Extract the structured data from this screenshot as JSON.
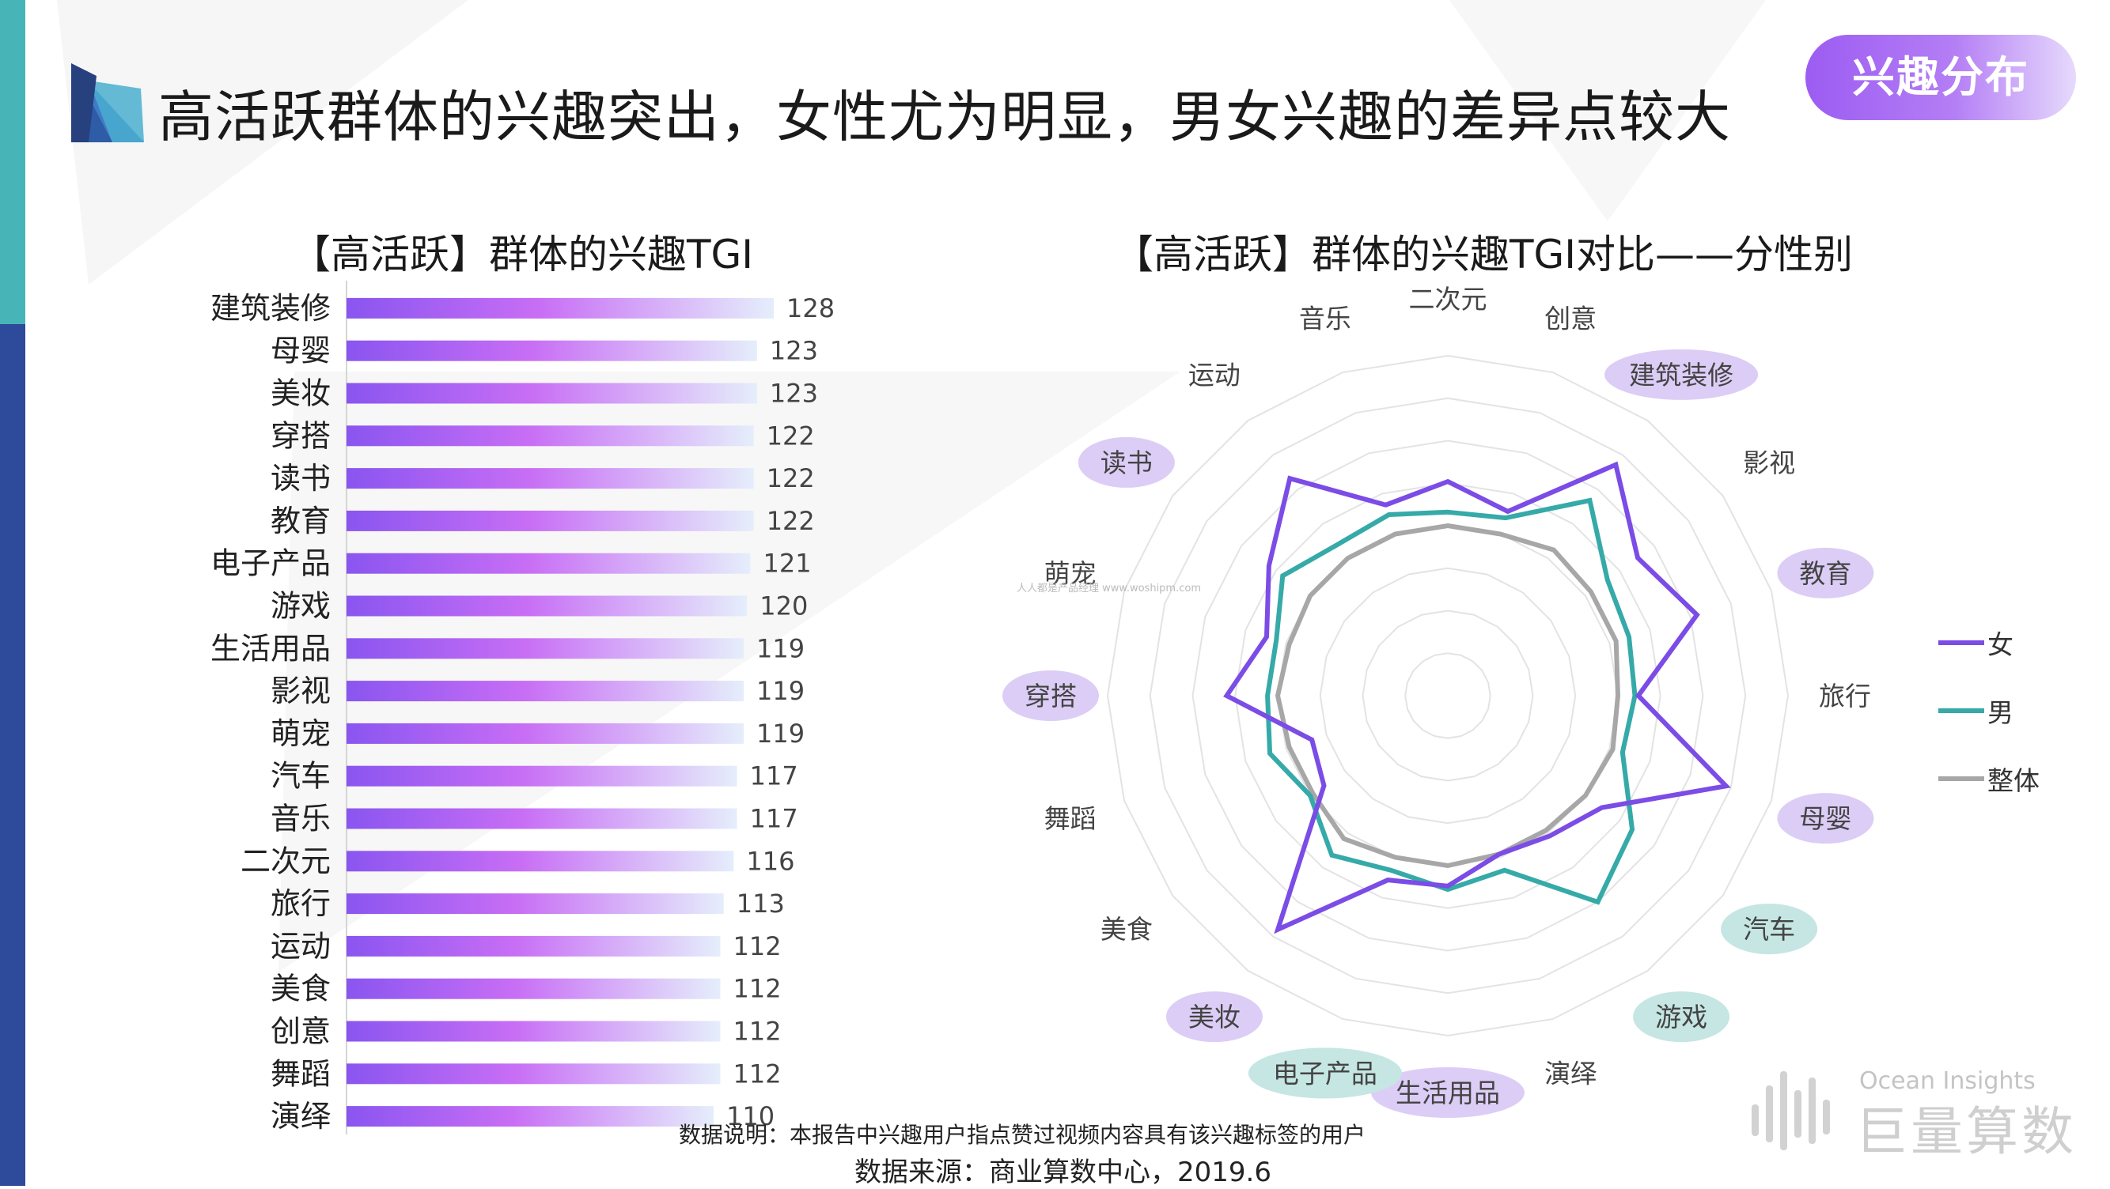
{
  "header": {
    "title": "高活跃群体的兴趣突出，女性尤为明显，男女兴趣的差异点较大",
    "tag": "兴趣分布"
  },
  "colors": {
    "female": "#7b4ce6",
    "male": "#35aaa8",
    "overall": "#a7a7a7",
    "highlight_female": "#dccdf6",
    "highlight_male": "#c5e6e3",
    "bar_start": "#8a55f0",
    "bar_mid": "#c86ef5",
    "bar_end": "#e5eefb"
  },
  "chart_data": [
    {
      "type": "bar",
      "orientation": "horizontal",
      "title": "【高活跃】群体的兴趣TGI",
      "categories": [
        "建筑装修",
        "母婴",
        "美妆",
        "穿搭",
        "读书",
        "教育",
        "电子产品",
        "游戏",
        "生活用品",
        "影视",
        "萌宠",
        "汽车",
        "音乐",
        "二次元",
        "旅行",
        "运动",
        "美食",
        "创意",
        "舞蹈",
        "演绎"
      ],
      "values": [
        128,
        123,
        123,
        122,
        122,
        122,
        121,
        120,
        119,
        119,
        119,
        117,
        117,
        116,
        113,
        112,
        112,
        112,
        112,
        110
      ]
    },
    {
      "type": "radar",
      "title": "【高活跃】群体的兴趣TGI对比——分性别",
      "axes": [
        "二次元",
        "创意",
        "建筑装修",
        "影视",
        "教育",
        "旅行",
        "母婴",
        "汽车",
        "游戏",
        "演绎",
        "生活用品",
        "电子产品",
        "美妆",
        "美食",
        "舞蹈",
        "穿搭",
        "萌宠",
        "读书",
        "运动",
        "音乐"
      ],
      "rmax": 1,
      "grid_levels": 8,
      "series": [
        {
          "name": "女",
          "values": [
            0.63,
            0.57,
            0.84,
            0.69,
            0.77,
            0.56,
            0.86,
            0.56,
            0.51,
            0.49,
            0.56,
            0.57,
            0.85,
            0.45,
            0.42,
            0.65,
            0.56,
            0.65,
            0.79,
            0.59
          ]
        },
        {
          "name": "男",
          "values": [
            0.54,
            0.55,
            0.71,
            0.58,
            0.56,
            0.55,
            0.54,
            0.67,
            0.75,
            0.54,
            0.57,
            0.54,
            0.58,
            0.5,
            0.55,
            0.53,
            0.53,
            0.6,
            0.55,
            0.56
          ]
        },
        {
          "name": "整体",
          "values": [
            0.5,
            0.5,
            0.53,
            0.52,
            0.52,
            0.5,
            0.51,
            0.5,
            0.49,
            0.49,
            0.5,
            0.5,
            0.52,
            0.49,
            0.49,
            0.5,
            0.49,
            0.5,
            0.5,
            0.5
          ]
        }
      ],
      "highlight_female": [
        "建筑装修",
        "教育",
        "母婴",
        "美妆",
        "穿搭",
        "读书",
        "生活用品"
      ],
      "highlight_male": [
        "汽车",
        "游戏",
        "电子产品"
      ],
      "legend_position": "right"
    }
  ],
  "footer": {
    "note": "数据说明：本报告中兴趣用户指点赞过视频内容具有该兴趣标签的用户",
    "source": "数据来源：商业算数中心，2019.6",
    "brand_en": "Ocean Insights",
    "brand_cn": "巨量算数"
  },
  "watermark": "人人都是产品经理 www.woshipm.com"
}
